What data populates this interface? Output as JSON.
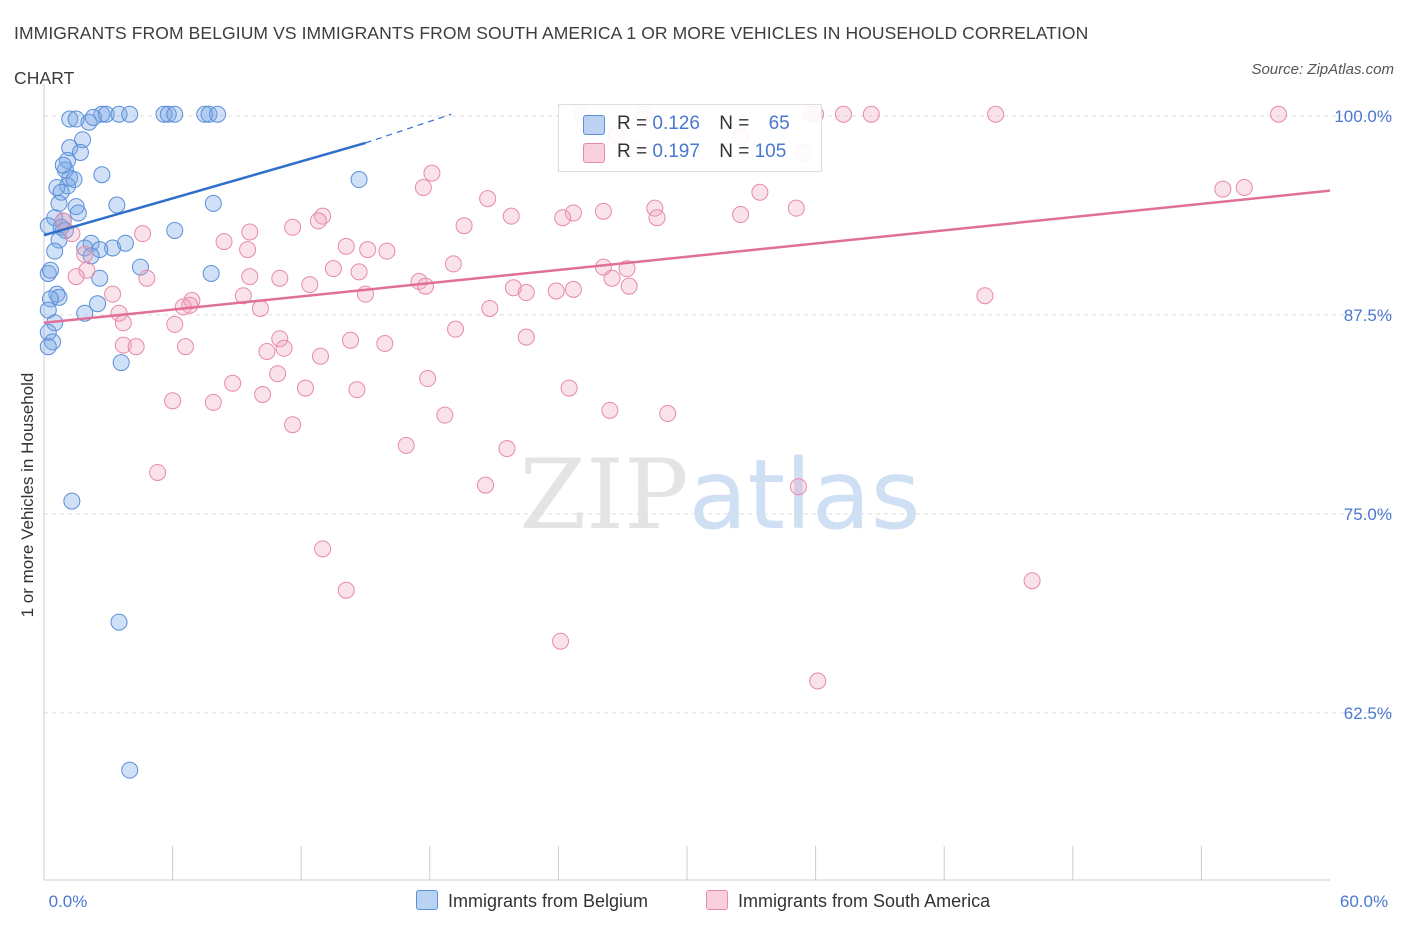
{
  "title_line1": "IMMIGRANTS FROM BELGIUM VS IMMIGRANTS FROM SOUTH AMERICA 1 OR MORE VEHICLES IN HOUSEHOLD CORRELATION",
  "title_line2": "CHART",
  "source": "Source: ZipAtlas.com",
  "watermark": "ZIPatlas",
  "colors": {
    "belgium": "#5b8fd8",
    "belgium_fill": "rgba(120,165,230,0.35)",
    "belgium_line": "#2f6fcc",
    "south_america": "#e88aa8",
    "south_america_fill": "rgba(240,160,190,0.30)",
    "south_america_line": "#e0709a",
    "axis_text": "#4a78d0",
    "grid": "#dddddd"
  },
  "legend": {
    "belgium": {
      "r_label": "R = ",
      "r_value": "0.126",
      "n_label": "N = ",
      "n_value": "65"
    },
    "south_america": {
      "r_label": "R = ",
      "r_value": "0.197",
      "n_label": "N = ",
      "n_value": "105"
    }
  },
  "chart_data": {
    "type": "scatter",
    "title": "Immigrants from Belgium vs Immigrants from South America 1 or more Vehicles in Household Correlation Chart",
    "xlabel": "",
    "ylabel": "1 or more Vehicles in Household",
    "xlim": [
      0,
      60
    ],
    "ylim": [
      52,
      102
    ],
    "x_tick_labels": [
      "0.0%",
      "60.0%"
    ],
    "y_ticks": [
      100.0,
      87.5,
      75.0,
      62.5
    ],
    "y_tick_labels": [
      "100.0%",
      "87.5%",
      "75.0%",
      "62.5%"
    ],
    "legend_position": "bottom",
    "series": [
      {
        "name": "Immigrants from Belgium",
        "color_key": "belgium",
        "trend": {
          "x": [
            0,
            15
          ],
          "y": [
            92.5,
            98.3
          ],
          "dashed_to": [
            19,
            100.1
          ]
        },
        "points": [
          [
            2.7,
            100.1
          ],
          [
            2.9,
            100.1
          ],
          [
            3.5,
            100.1
          ],
          [
            4.0,
            100.1
          ],
          [
            5.6,
            100.1
          ],
          [
            5.8,
            100.1
          ],
          [
            6.1,
            100.1
          ],
          [
            7.5,
            100.1
          ],
          [
            7.7,
            100.1
          ],
          [
            8.1,
            100.1
          ],
          [
            1.2,
            99.8
          ],
          [
            2.1,
            99.6
          ],
          [
            1.8,
            98.5
          ],
          [
            1.2,
            98.0
          ],
          [
            1.1,
            97.2
          ],
          [
            1.7,
            97.7
          ],
          [
            1.0,
            96.6
          ],
          [
            1.2,
            96.1
          ],
          [
            2.7,
            96.3
          ],
          [
            1.1,
            95.6
          ],
          [
            0.6,
            95.5
          ],
          [
            0.8,
            95.2
          ],
          [
            0.7,
            94.5
          ],
          [
            3.4,
            94.4
          ],
          [
            7.9,
            94.5
          ],
          [
            1.5,
            94.3
          ],
          [
            1.6,
            93.9
          ],
          [
            0.5,
            93.6
          ],
          [
            0.9,
            93.4
          ],
          [
            0.8,
            93.0
          ],
          [
            1.0,
            92.8
          ],
          [
            6.1,
            92.8
          ],
          [
            0.7,
            92.2
          ],
          [
            2.2,
            92.0
          ],
          [
            3.8,
            92.0
          ],
          [
            3.2,
            91.7
          ],
          [
            1.9,
            91.7
          ],
          [
            2.6,
            91.6
          ],
          [
            0.5,
            91.5
          ],
          [
            2.2,
            91.2
          ],
          [
            4.5,
            90.5
          ],
          [
            7.8,
            90.1
          ],
          [
            0.2,
            90.1
          ],
          [
            2.6,
            89.8
          ],
          [
            0.6,
            88.8
          ],
          [
            0.7,
            88.6
          ],
          [
            0.3,
            88.5
          ],
          [
            2.5,
            88.2
          ],
          [
            0.2,
            87.8
          ],
          [
            1.9,
            87.6
          ],
          [
            0.5,
            87.0
          ],
          [
            0.2,
            86.4
          ],
          [
            0.4,
            85.8
          ],
          [
            0.2,
            85.5
          ],
          [
            3.6,
            84.5
          ],
          [
            14.7,
            96.0
          ],
          [
            1.3,
            75.8
          ],
          [
            3.5,
            68.2
          ],
          [
            4.0,
            58.9
          ],
          [
            0.2,
            93.1
          ],
          [
            0.3,
            90.3
          ],
          [
            1.5,
            99.8
          ],
          [
            2.3,
            99.9
          ],
          [
            0.9,
            96.9
          ],
          [
            1.4,
            96.0
          ]
        ]
      },
      {
        "name": "Immigrants from South America",
        "color_key": "south_america",
        "trend": {
          "x": [
            0,
            60
          ],
          "y": [
            87.0,
            95.3
          ]
        },
        "points": [
          [
            25.1,
            100.1
          ],
          [
            28.0,
            100.1
          ],
          [
            35.8,
            100.1
          ],
          [
            36.0,
            100.1
          ],
          [
            37.3,
            100.1
          ],
          [
            38.6,
            100.1
          ],
          [
            44.4,
            100.1
          ],
          [
            57.6,
            100.1
          ],
          [
            26.7,
            98.8
          ],
          [
            32.5,
            98.7
          ],
          [
            35.4,
            97.7
          ],
          [
            27.5,
            97.9
          ],
          [
            18.1,
            96.4
          ],
          [
            17.7,
            95.5
          ],
          [
            56.0,
            95.5
          ],
          [
            55.0,
            95.4
          ],
          [
            33.4,
            95.2
          ],
          [
            20.7,
            94.8
          ],
          [
            35.1,
            94.2
          ],
          [
            28.5,
            94.2
          ],
          [
            26.1,
            94.0
          ],
          [
            24.7,
            93.9
          ],
          [
            32.5,
            93.8
          ],
          [
            21.8,
            93.7
          ],
          [
            13.0,
            93.7
          ],
          [
            28.6,
            93.6
          ],
          [
            24.2,
            93.6
          ],
          [
            12.8,
            93.4
          ],
          [
            19.6,
            93.1
          ],
          [
            11.6,
            93.0
          ],
          [
            9.6,
            92.7
          ],
          [
            4.6,
            92.6
          ],
          [
            8.4,
            92.1
          ],
          [
            14.1,
            91.8
          ],
          [
            15.1,
            91.6
          ],
          [
            9.5,
            91.6
          ],
          [
            16.0,
            91.5
          ],
          [
            19.1,
            90.7
          ],
          [
            26.1,
            90.5
          ],
          [
            13.5,
            90.4
          ],
          [
            27.2,
            90.4
          ],
          [
            14.7,
            90.2
          ],
          [
            9.6,
            89.9
          ],
          [
            4.8,
            89.8
          ],
          [
            26.5,
            89.8
          ],
          [
            11.0,
            89.8
          ],
          [
            17.5,
            89.6
          ],
          [
            12.4,
            89.4
          ],
          [
            17.8,
            89.3
          ],
          [
            27.3,
            89.3
          ],
          [
            21.9,
            89.2
          ],
          [
            24.7,
            89.1
          ],
          [
            23.9,
            89.0
          ],
          [
            22.5,
            88.9
          ],
          [
            15.0,
            88.8
          ],
          [
            9.3,
            88.7
          ],
          [
            43.9,
            88.7
          ],
          [
            6.9,
            88.4
          ],
          [
            6.8,
            88.1
          ],
          [
            20.8,
            87.9
          ],
          [
            3.5,
            87.6
          ],
          [
            3.7,
            87.0
          ],
          [
            6.1,
            86.9
          ],
          [
            19.2,
            86.6
          ],
          [
            22.5,
            86.1
          ],
          [
            11.0,
            86.0
          ],
          [
            14.3,
            85.9
          ],
          [
            15.9,
            85.7
          ],
          [
            3.7,
            85.6
          ],
          [
            6.6,
            85.5
          ],
          [
            4.3,
            85.5
          ],
          [
            10.4,
            85.2
          ],
          [
            11.2,
            85.4
          ],
          [
            12.9,
            84.9
          ],
          [
            10.9,
            83.8
          ],
          [
            17.9,
            83.5
          ],
          [
            8.8,
            83.2
          ],
          [
            12.2,
            82.9
          ],
          [
            14.6,
            82.8
          ],
          [
            24.5,
            82.9
          ],
          [
            10.2,
            82.5
          ],
          [
            6.0,
            82.1
          ],
          [
            7.9,
            82.0
          ],
          [
            26.4,
            81.5
          ],
          [
            18.7,
            81.2
          ],
          [
            29.1,
            81.3
          ],
          [
            11.6,
            80.6
          ],
          [
            16.9,
            79.3
          ],
          [
            21.6,
            79.1
          ],
          [
            5.3,
            77.6
          ],
          [
            20.6,
            76.8
          ],
          [
            35.2,
            76.7
          ],
          [
            13.0,
            72.8
          ],
          [
            14.1,
            70.2
          ],
          [
            46.1,
            70.8
          ],
          [
            24.1,
            67.0
          ],
          [
            36.1,
            64.5
          ],
          [
            2.0,
            90.3
          ],
          [
            1.5,
            89.9
          ],
          [
            3.2,
            88.8
          ],
          [
            0.9,
            93.4
          ],
          [
            1.3,
            92.6
          ],
          [
            1.9,
            91.3
          ],
          [
            6.5,
            88.0
          ],
          [
            10.1,
            87.9
          ]
        ]
      }
    ]
  }
}
